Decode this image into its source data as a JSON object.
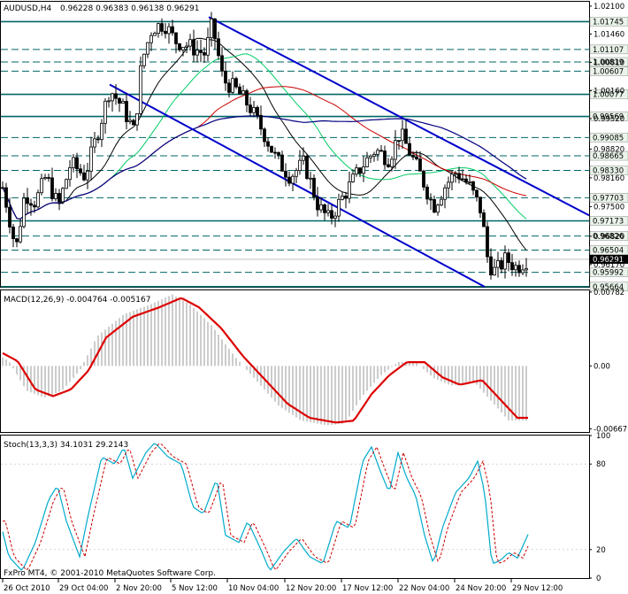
{
  "chart_data": {
    "type": "candlestick",
    "symbol": "AUDUSD,H4",
    "ohlc_header": "0.96228 0.96383 0.96138 0.96291",
    "last_price": 0.96291,
    "price_axis": {
      "ylim": [
        0.9566,
        1.022
      ],
      "tick_labels": [
        "1.02100",
        "1.01460",
        "1.00810",
        "1.00160",
        "0.99520",
        "0.98820",
        "0.98160",
        "0.97500",
        "0.96820",
        "0.96170"
      ]
    },
    "horizontal_levels": [
      {
        "value": 1.01745,
        "label": "1.01745",
        "style": "solid"
      },
      {
        "value": 1.01107,
        "label": "1.01107",
        "style": "dashed"
      },
      {
        "value": 1.00819,
        "label": "1.00819",
        "style": "dashed"
      },
      {
        "value": 1.00607,
        "label": "1.00607",
        "style": "dashed"
      },
      {
        "value": 1.00077,
        "label": "1.00077",
        "style": "solid"
      },
      {
        "value": 0.99569,
        "label": "0.99569",
        "style": "solid"
      },
      {
        "value": 0.99085,
        "label": "0.99085",
        "style": "dashed"
      },
      {
        "value": 0.98665,
        "label": "0.98665",
        "style": "dashed"
      },
      {
        "value": 0.9833,
        "label": "0.98330",
        "style": "dashed"
      },
      {
        "value": 0.97703,
        "label": "0.97703",
        "style": "dashed"
      },
      {
        "value": 0.97173,
        "label": "0.97173",
        "style": "solid"
      },
      {
        "value": 0.96826,
        "label": "0.96826",
        "style": "dashed"
      },
      {
        "value": 0.96504,
        "label": "0.96504",
        "style": "dashed"
      },
      {
        "value": 0.95992,
        "label": "0.95992",
        "style": "dashed"
      },
      {
        "value": 0.95664,
        "label": "0.95664",
        "style": "solid"
      }
    ],
    "x_labels": [
      "26 Oct 2010",
      "29 Oct 04:00",
      "2 Nov 20:00",
      "5 Nov 12:00",
      "10 Nov 04:00",
      "12 Nov 20:00",
      "17 Nov 12:00",
      "22 Nov 04:00",
      "24 Nov 20:00",
      "29 Nov 12:00"
    ],
    "macd": {
      "label": "MACD(12,26,9) -0.004764 -0.005167",
      "tick_labels": [
        "0.00782",
        "0.00",
        "-0.00667"
      ],
      "ylim": [
        -0.007,
        0.008
      ]
    },
    "stoch": {
      "label": "Stoch(13,3,3) 34.1031 29.2143",
      "tick_labels": [
        "100",
        "80",
        "20",
        "0"
      ],
      "ylim": [
        0,
        100
      ]
    },
    "footer": "FxPro MT4, © 2001-2010 MetaQuotes Software Corp.",
    "colors": {
      "candles": "#000000",
      "channel": "#0000cc",
      "level_line": "#006666",
      "ma_fast": "#000000",
      "ma_mid": "#00cc66",
      "ma_slow": "#cc0000",
      "ma_long": "#000080",
      "macd_signal": "#dd0000",
      "histogram": "#999999",
      "stoch_main": "#00aacc",
      "stoch_signal": "#cc0000"
    }
  }
}
